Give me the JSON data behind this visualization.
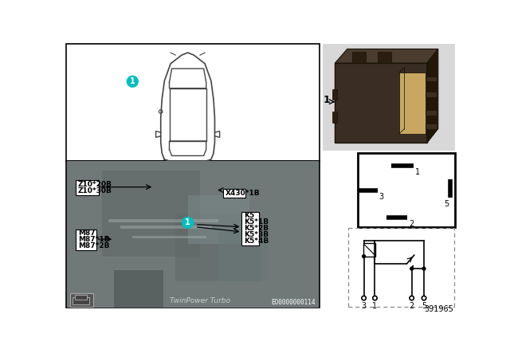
{
  "bg_color": "#ffffff",
  "car_outline_color": "#444444",
  "teal_color": "#00bfbf",
  "part_number": "391965",
  "eo_number": "EO0000000114",
  "relay_labels": [
    "K5",
    "K5*1B",
    "K5*2B",
    "K5*3B",
    "K5*4B"
  ],
  "left_labels": [
    "Z10*20B",
    "Z10*30B"
  ],
  "bottom_left_labels": [
    "M87",
    "M87*1B",
    "M87*2B"
  ],
  "connector_label": "X430*1B",
  "photo_gray": "#8a9090",
  "photo_dark": "#606868",
  "photo_mid": "#707878",
  "relay_dark": "#3a2e24",
  "relay_mid": "#4a3c2e",
  "relay_light": "#5a4c3e",
  "relay_slot": "#c8a860"
}
